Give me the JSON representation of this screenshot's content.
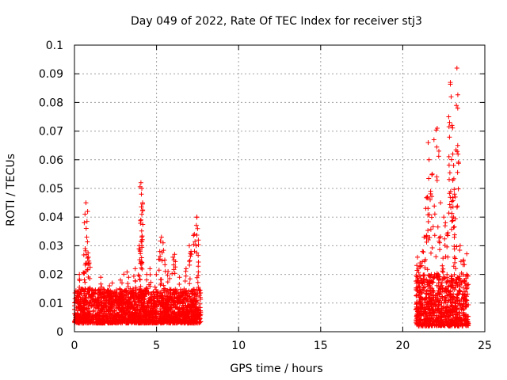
{
  "chart_data": {
    "type": "scatter",
    "title": "Day 049 of 2022, Rate Of TEC Index for receiver stj3",
    "xlabel": "GPS time / hours",
    "ylabel": "ROTI / TECUs",
    "xlim": [
      0,
      25
    ],
    "ylim": [
      0,
      0.1
    ],
    "x_ticks": [
      0,
      5,
      10,
      15,
      20,
      25
    ],
    "y_ticks": [
      0,
      0.01,
      0.02,
      0.03,
      0.04,
      0.05,
      0.06,
      0.07,
      0.08,
      0.09,
      0.1
    ],
    "x_tick_labels": [
      "0",
      "5",
      "10",
      "15",
      "20",
      "25"
    ],
    "y_tick_labels": [
      "0",
      "0.01",
      "0.02",
      "0.03",
      "0.04",
      "0.05",
      "0.06",
      "0.07",
      "0.08",
      "0.09",
      "0.1"
    ],
    "grid": true,
    "marker": "+",
    "series": [
      {
        "name": "ROTI",
        "color": "#ff0000",
        "segments": [
          {
            "x_start": 0.0,
            "x_end": 7.7,
            "typical_min": 0.003,
            "typical_max": 0.015
          },
          {
            "x_start": 20.8,
            "x_end": 24.0,
            "typical_min": 0.002,
            "typical_max": 0.02
          }
        ],
        "peaks": [
          {
            "x": 0.7,
            "y": 0.045
          },
          {
            "x": 0.8,
            "y": 0.042
          },
          {
            "x": 0.6,
            "y": 0.038
          },
          {
            "x": 0.75,
            "y": 0.033
          },
          {
            "x": 0.65,
            "y": 0.029
          },
          {
            "x": 0.85,
            "y": 0.026
          },
          {
            "x": 0.3,
            "y": 0.02
          },
          {
            "x": 0.9,
            "y": 0.024
          },
          {
            "x": 1.6,
            "y": 0.019
          },
          {
            "x": 2.3,
            "y": 0.017
          },
          {
            "x": 2.8,
            "y": 0.018
          },
          {
            "x": 3.3,
            "y": 0.019
          },
          {
            "x": 3.7,
            "y": 0.022
          },
          {
            "x": 4.05,
            "y": 0.052
          },
          {
            "x": 4.1,
            "y": 0.05
          },
          {
            "x": 4.08,
            "y": 0.048
          },
          {
            "x": 4.15,
            "y": 0.045
          },
          {
            "x": 4.1,
            "y": 0.041
          },
          {
            "x": 4.05,
            "y": 0.039
          },
          {
            "x": 3.95,
            "y": 0.03
          },
          {
            "x": 4.0,
            "y": 0.028
          },
          {
            "x": 4.05,
            "y": 0.024
          },
          {
            "x": 4.4,
            "y": 0.02
          },
          {
            "x": 4.6,
            "y": 0.022
          },
          {
            "x": 5.3,
            "y": 0.033
          },
          {
            "x": 5.4,
            "y": 0.031
          },
          {
            "x": 5.2,
            "y": 0.028
          },
          {
            "x": 5.5,
            "y": 0.025
          },
          {
            "x": 6.0,
            "y": 0.026
          },
          {
            "x": 6.1,
            "y": 0.027
          },
          {
            "x": 5.7,
            "y": 0.021
          },
          {
            "x": 6.4,
            "y": 0.019
          },
          {
            "x": 7.0,
            "y": 0.03
          },
          {
            "x": 7.1,
            "y": 0.028
          },
          {
            "x": 7.3,
            "y": 0.034
          },
          {
            "x": 7.45,
            "y": 0.04
          },
          {
            "x": 7.5,
            "y": 0.036
          },
          {
            "x": 7.55,
            "y": 0.032
          },
          {
            "x": 6.8,
            "y": 0.022
          },
          {
            "x": 20.9,
            "y": 0.026
          },
          {
            "x": 21.05,
            "y": 0.024
          },
          {
            "x": 21.2,
            "y": 0.028
          },
          {
            "x": 21.4,
            "y": 0.043
          },
          {
            "x": 21.5,
            "y": 0.047
          },
          {
            "x": 21.55,
            "y": 0.066
          },
          {
            "x": 21.6,
            "y": 0.06
          },
          {
            "x": 21.7,
            "y": 0.049
          },
          {
            "x": 21.8,
            "y": 0.055
          },
          {
            "x": 21.9,
            "y": 0.067
          },
          {
            "x": 22.1,
            "y": 0.071
          },
          {
            "x": 22.2,
            "y": 0.063
          },
          {
            "x": 22.3,
            "y": 0.045
          },
          {
            "x": 22.5,
            "y": 0.04
          },
          {
            "x": 22.6,
            "y": 0.038
          },
          {
            "x": 22.8,
            "y": 0.075
          },
          {
            "x": 22.85,
            "y": 0.073
          },
          {
            "x": 22.9,
            "y": 0.087
          },
          {
            "x": 22.95,
            "y": 0.082
          },
          {
            "x": 23.0,
            "y": 0.072
          },
          {
            "x": 23.05,
            "y": 0.062
          },
          {
            "x": 23.1,
            "y": 0.058
          },
          {
            "x": 23.15,
            "y": 0.048
          },
          {
            "x": 23.2,
            "y": 0.047
          },
          {
            "x": 23.3,
            "y": 0.092
          },
          {
            "x": 23.35,
            "y": 0.078
          },
          {
            "x": 23.35,
            "y": 0.065
          },
          {
            "x": 23.1,
            "y": 0.04
          },
          {
            "x": 22.7,
            "y": 0.034
          },
          {
            "x": 21.3,
            "y": 0.033
          },
          {
            "x": 23.5,
            "y": 0.03
          },
          {
            "x": 23.7,
            "y": 0.025
          },
          {
            "x": 23.9,
            "y": 0.02
          }
        ]
      }
    ]
  }
}
